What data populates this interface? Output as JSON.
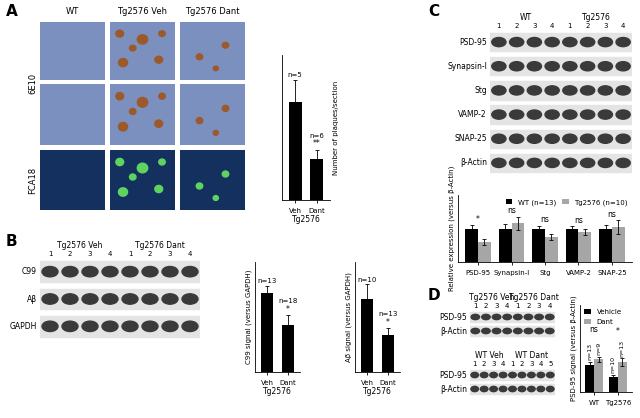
{
  "panel_labels": [
    "A",
    "B",
    "C",
    "D"
  ],
  "micrographs": {
    "columns": [
      "WT",
      "Tg2576 Veh",
      "Tg2576 Dant"
    ],
    "row_groups": [
      {
        "label": "6E10",
        "rows": 2
      },
      {
        "label": "FCA18",
        "rows": 1
      }
    ]
  },
  "blots": [
    {
      "groups": [
        {
          "label": "Tg2576 Veh",
          "lanes": [
            "1",
            "2",
            "3",
            "4"
          ]
        },
        {
          "label": "Tg2576 Dant",
          "lanes": [
            "1",
            "2",
            "3",
            "4"
          ]
        }
      ],
      "rows": [
        "C99",
        "Aβ",
        "GAPDH"
      ]
    },
    {
      "groups": [
        {
          "label": "WT",
          "lanes": [
            "1",
            "2",
            "3",
            "4"
          ]
        },
        {
          "label": "Tg2576",
          "lanes": [
            "1",
            "2",
            "3",
            "4"
          ]
        }
      ],
      "rows": [
        "PSD-95",
        "Synapsin-I",
        "Stg",
        "VAMP-2",
        "SNAP-25",
        "β-Actin"
      ]
    },
    {
      "groups": [
        {
          "label": "Tg2576 Veh",
          "lanes": [
            "1",
            "2",
            "3",
            "4"
          ]
        },
        {
          "label": "Tg2576 Dant",
          "lanes": [
            "1",
            "2",
            "3",
            "4"
          ]
        }
      ],
      "rows": [
        "PSD-95",
        "β-Actin"
      ]
    },
    {
      "groups": [
        {
          "label": "WT Veh",
          "lanes": [
            "1",
            "2",
            "3",
            "4"
          ]
        },
        {
          "label": "WT Dant",
          "lanes": [
            "1",
            "2",
            "3",
            "4",
            "5"
          ]
        }
      ],
      "rows": [
        "PSD-95",
        "β-Actin"
      ]
    }
  ],
  "chart_data": [
    {
      "type": "bar",
      "ylabel": "Number of plaques/section",
      "xlabel": "Tg2576",
      "categories": [
        "Veh",
        "Dant"
      ],
      "values": [
        88,
        37
      ],
      "errors": [
        20,
        8
      ],
      "n_labels": [
        "n=5",
        "n=6"
      ],
      "significance": [
        null,
        "**"
      ],
      "color": "#000000",
      "ylim": [
        0,
        130
      ],
      "yticks": [],
      "tick_labels": "x"
    },
    {
      "type": "bar",
      "ylabel": "C99 signal (versus GAPDH)",
      "xlabel": "Tg2576",
      "categories": [
        "Veh",
        "Dant"
      ],
      "values": [
        1.0,
        0.6
      ],
      "errors": [
        0.1,
        0.12
      ],
      "n_labels": [
        "n=13",
        "n=18"
      ],
      "significance": [
        null,
        "*"
      ],
      "color": "#000000",
      "ylim": [
        0,
        1.4
      ],
      "yticks": [],
      "tick_labels": "x"
    },
    {
      "type": "bar",
      "ylabel": "Aβ signal (versus GAPDH)",
      "xlabel": "Tg2576",
      "categories": [
        "Veh",
        "Dant"
      ],
      "values": [
        1.0,
        0.5
      ],
      "errors": [
        0.2,
        0.1
      ],
      "n_labels": [
        "n=10",
        "n=13"
      ],
      "significance": [
        null,
        "*"
      ],
      "color": "#000000",
      "ylim": [
        0,
        1.5
      ],
      "yticks": [],
      "tick_labels": "x"
    },
    {
      "type": "bar",
      "ylabel": "Relative expression (versus β-Actin)",
      "categories": [
        "PSD-95",
        "Synapsin-I",
        "Stg",
        "VAMP-2",
        "SNAP-25"
      ],
      "series": [
        {
          "name": "WT (n=13)",
          "color": "#000000",
          "values": [
            1.0,
            1.0,
            1.0,
            1.0,
            1.0
          ],
          "errors": [
            0.1,
            0.12,
            0.08,
            0.07,
            0.1
          ]
        },
        {
          "name": "Tg2576 (n=10)",
          "color": "#a6a6a6",
          "values": [
            0.6,
            1.15,
            0.75,
            0.9,
            1.05
          ],
          "errors": [
            0.1,
            0.2,
            0.1,
            0.08,
            0.2
          ]
        }
      ],
      "significance": [
        "*",
        "ns",
        "ns",
        "ns",
        "ns"
      ],
      "legend": "upper right",
      "ylim": [
        0,
        2
      ],
      "yticks": [],
      "tick_labels": "x"
    },
    {
      "type": "bar",
      "ylabel": "PSD-95 signal (versus β-Actin)",
      "categories": [
        "WT",
        "Tg2576"
      ],
      "series": [
        {
          "name": "Vehicle",
          "color": "#000000",
          "values": [
            1.0,
            0.55
          ],
          "errors": [
            0.12,
            0.08
          ],
          "n_labels": [
            "n=13",
            "n=10"
          ]
        },
        {
          "name": "Dant",
          "color": "#a6a6a6",
          "values": [
            1.2,
            1.1
          ],
          "errors": [
            0.1,
            0.15
          ],
          "n_labels": [
            "n=9",
            "n=13"
          ]
        }
      ],
      "significance": [
        "ns",
        "*"
      ],
      "legend": "upper left",
      "ylim": [
        0,
        3.2
      ],
      "yticks": [],
      "tick_labels": "x"
    }
  ]
}
